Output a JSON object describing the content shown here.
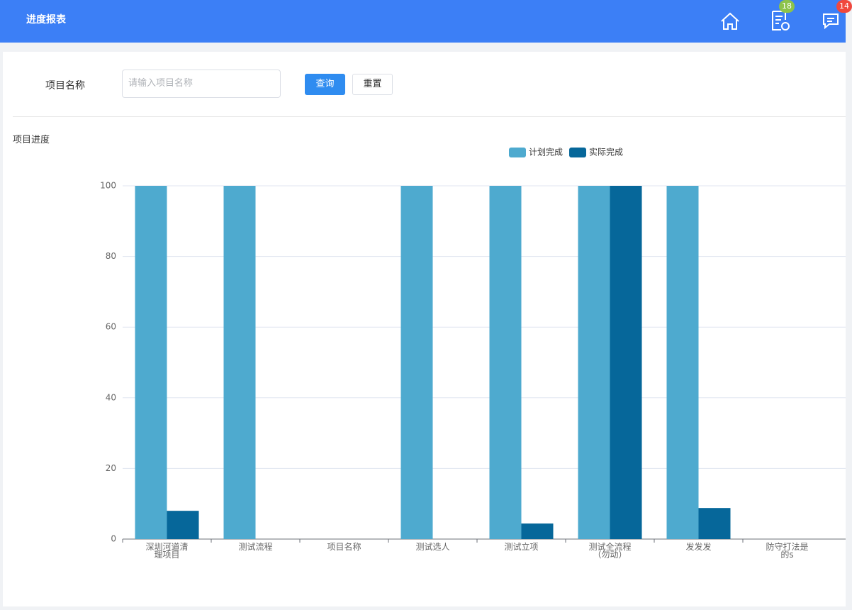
{
  "header": {
    "title": "进度报表",
    "badges": [
      "18",
      "14"
    ]
  },
  "form": {
    "label": "项目名称",
    "placeholder": "请输入项目名称",
    "buttons": [
      "查询",
      "重置"
    ]
  },
  "section_title": "项目进度",
  "chart_data": {
    "type": "bar",
    "categories": [
      "深圳河道清理项目",
      "测试流程",
      "项目名称",
      "测试选人",
      "测试立项",
      "测试全流程（勿动）",
      "发发发",
      "防守打法是的s"
    ],
    "series": [
      {
        "name": "计划完成",
        "color": "#4eaacf",
        "values": [
          100,
          100,
          0,
          100,
          100,
          100,
          100,
          0
        ]
      },
      {
        "name": "实际完成",
        "color": "#06679a",
        "values": [
          8,
          0,
          0,
          0,
          4.4,
          100,
          8.8,
          0
        ]
      }
    ],
    "ylim": [
      0,
      100
    ],
    "yticks": [
      0,
      20,
      40,
      60,
      80,
      100
    ],
    "grid": true
  }
}
